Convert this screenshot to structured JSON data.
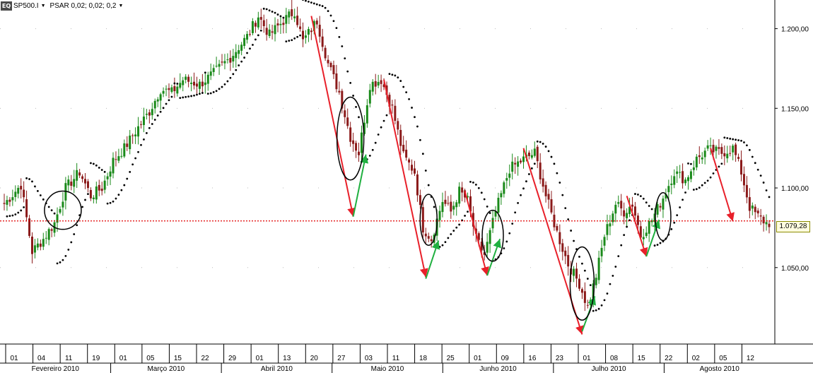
{
  "header": {
    "symbol": "SP500.I",
    "indicator": "PSAR 0,02; 0,02; 0,2",
    "logo_text": "EQ"
  },
  "last_price_label": "1.079,28",
  "colors": {
    "up_candle": "#1a8a1a",
    "down_candle": "#8b1a1a",
    "psar": "#000000",
    "ref_line": "#e00000",
    "down_arrow": "#e8202a",
    "up_arrow": "#20b040",
    "ellipse": "#000000"
  },
  "chart_data": {
    "type": "candlestick",
    "y_ticks": [
      "1.050,00",
      "1.100,00",
      "1.150,00",
      "1.200,00"
    ],
    "y_tick_values": [
      1050,
      1100,
      1150,
      1200
    ],
    "ylim": [
      1002,
      1218
    ],
    "reference_line": 1079.28,
    "x_day_labels": [
      "01",
      "04",
      "11",
      "19",
      "01",
      "05",
      "15",
      "22",
      "29",
      "01",
      "13",
      "20",
      "27",
      "03",
      "11",
      "18",
      "25",
      "01",
      "09",
      "16",
      "23",
      "01",
      "08",
      "15",
      "22",
      "02",
      "05",
      "12"
    ],
    "x_month_labels": [
      "Fevereiro 2010",
      "Março 2010",
      "Abril 2010",
      "Maio 2010",
      "Junho 2010",
      "Julho 2010",
      "Agosto 2010"
    ],
    "anchors": [
      [
        0,
        1090
      ],
      [
        6,
        1102
      ],
      [
        10,
        1060
      ],
      [
        14,
        1068
      ],
      [
        18,
        1078
      ],
      [
        22,
        1100
      ],
      [
        27,
        1110
      ],
      [
        31,
        1095
      ],
      [
        35,
        1100
      ],
      [
        39,
        1117
      ],
      [
        43,
        1125
      ],
      [
        48,
        1138
      ],
      [
        52,
        1148
      ],
      [
        56,
        1162
      ],
      [
        60,
        1160
      ],
      [
        64,
        1168
      ],
      [
        70,
        1165
      ],
      [
        75,
        1172
      ],
      [
        81,
        1182
      ],
      [
        87,
        1195
      ],
      [
        91,
        1208
      ],
      [
        95,
        1196
      ],
      [
        100,
        1205
      ],
      [
        104,
        1211
      ],
      [
        107,
        1192
      ],
      [
        112,
        1205
      ],
      [
        116,
        1178
      ],
      [
        120,
        1160
      ],
      [
        124,
        1132
      ],
      [
        127,
        1122
      ],
      [
        131,
        1165
      ],
      [
        135,
        1168
      ],
      [
        139,
        1150
      ],
      [
        143,
        1120
      ],
      [
        147,
        1110
      ],
      [
        150,
        1075
      ],
      [
        153,
        1068
      ],
      [
        157,
        1092
      ],
      [
        160,
        1085
      ],
      [
        163,
        1098
      ],
      [
        166,
        1092
      ],
      [
        169,
        1068
      ],
      [
        172,
        1058
      ],
      [
        176,
        1085
      ],
      [
        181,
        1112
      ],
      [
        186,
        1118
      ],
      [
        190,
        1122
      ],
      [
        194,
        1095
      ],
      [
        198,
        1072
      ],
      [
        202,
        1052
      ],
      [
        206,
        1040
      ],
      [
        209,
        1025
      ],
      [
        212,
        1045
      ],
      [
        215,
        1070
      ],
      [
        219,
        1090
      ],
      [
        222,
        1085
      ],
      [
        225,
        1090
      ],
      [
        228,
        1070
      ],
      [
        232,
        1080
      ],
      [
        236,
        1094
      ],
      [
        240,
        1110
      ],
      [
        244,
        1105
      ],
      [
        248,
        1118
      ],
      [
        252,
        1124
      ],
      [
        257,
        1122
      ],
      [
        261,
        1125
      ],
      [
        264,
        1110
      ],
      [
        267,
        1088
      ],
      [
        270,
        1082
      ],
      [
        273,
        1078
      ]
    ],
    "seed": 7,
    "down_arrows": [
      [
        1208,
        1082,
        38
      ],
      [
        1168,
        1044,
        16
      ],
      [
        1098,
        1045,
        13
      ],
      [
        1125,
        1008,
        30
      ],
      [
        1095,
        1057,
        8
      ],
      [
        1125,
        1079,
        7
      ]
    ],
    "up_arrows": [
      [
        1082,
        1121
      ],
      [
        1043,
        1067
      ],
      [
        1045,
        1068
      ],
      [
        1010,
        1032
      ],
      [
        1057,
        1080
      ]
    ],
    "ellipses": [
      [
        1086,
        26,
        12
      ],
      [
        1131,
        19,
        26
      ],
      [
        1080,
        12,
        16
      ],
      [
        1070,
        15,
        16
      ],
      [
        1040,
        17,
        23
      ],
      [
        1082,
        11,
        15
      ]
    ],
    "ellipse_bar_index": [
      21,
      124,
      152,
      175,
      207,
      236
    ],
    "arrow_bar_index": [
      [
        110,
        125
      ],
      [
        136,
        151
      ],
      [
        165,
        173
      ],
      [
        186,
        207
      ],
      [
        223,
        230
      ],
      [
        253,
        261
      ]
    ]
  }
}
